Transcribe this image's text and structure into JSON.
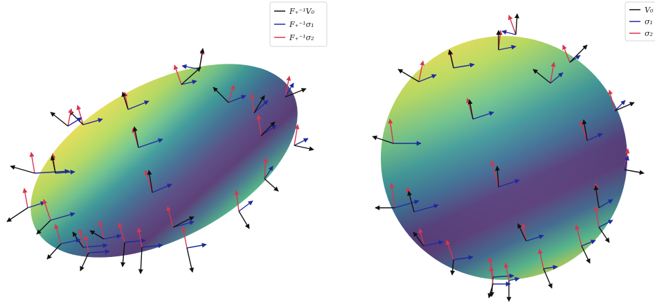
{
  "colors": {
    "black_vector": "#111111",
    "blue_vector": "#1f2a9e",
    "red_vector": "#d6364f",
    "viridis_yellow": "#e3e45a",
    "viridis_green": "#5ec69b",
    "viridis_teal": "#3b8a9a",
    "viridis_purple": "#5b3e7c"
  },
  "left_panel": {
    "legend": [
      {
        "label": "F₊⁻¹V₀",
        "color": "#111111"
      },
      {
        "label": "F₊⁻¹σ₁",
        "color": "#1f2a9e"
      },
      {
        "label": "F₊⁻¹σ₂",
        "color": "#d6364f"
      }
    ]
  },
  "right_panel": {
    "legend": [
      {
        "label": "V₀",
        "color": "#111111"
      },
      {
        "label": "σ₁",
        "color": "#1f2a9e"
      },
      {
        "label": "σ₂",
        "color": "#d6364f"
      }
    ]
  }
}
